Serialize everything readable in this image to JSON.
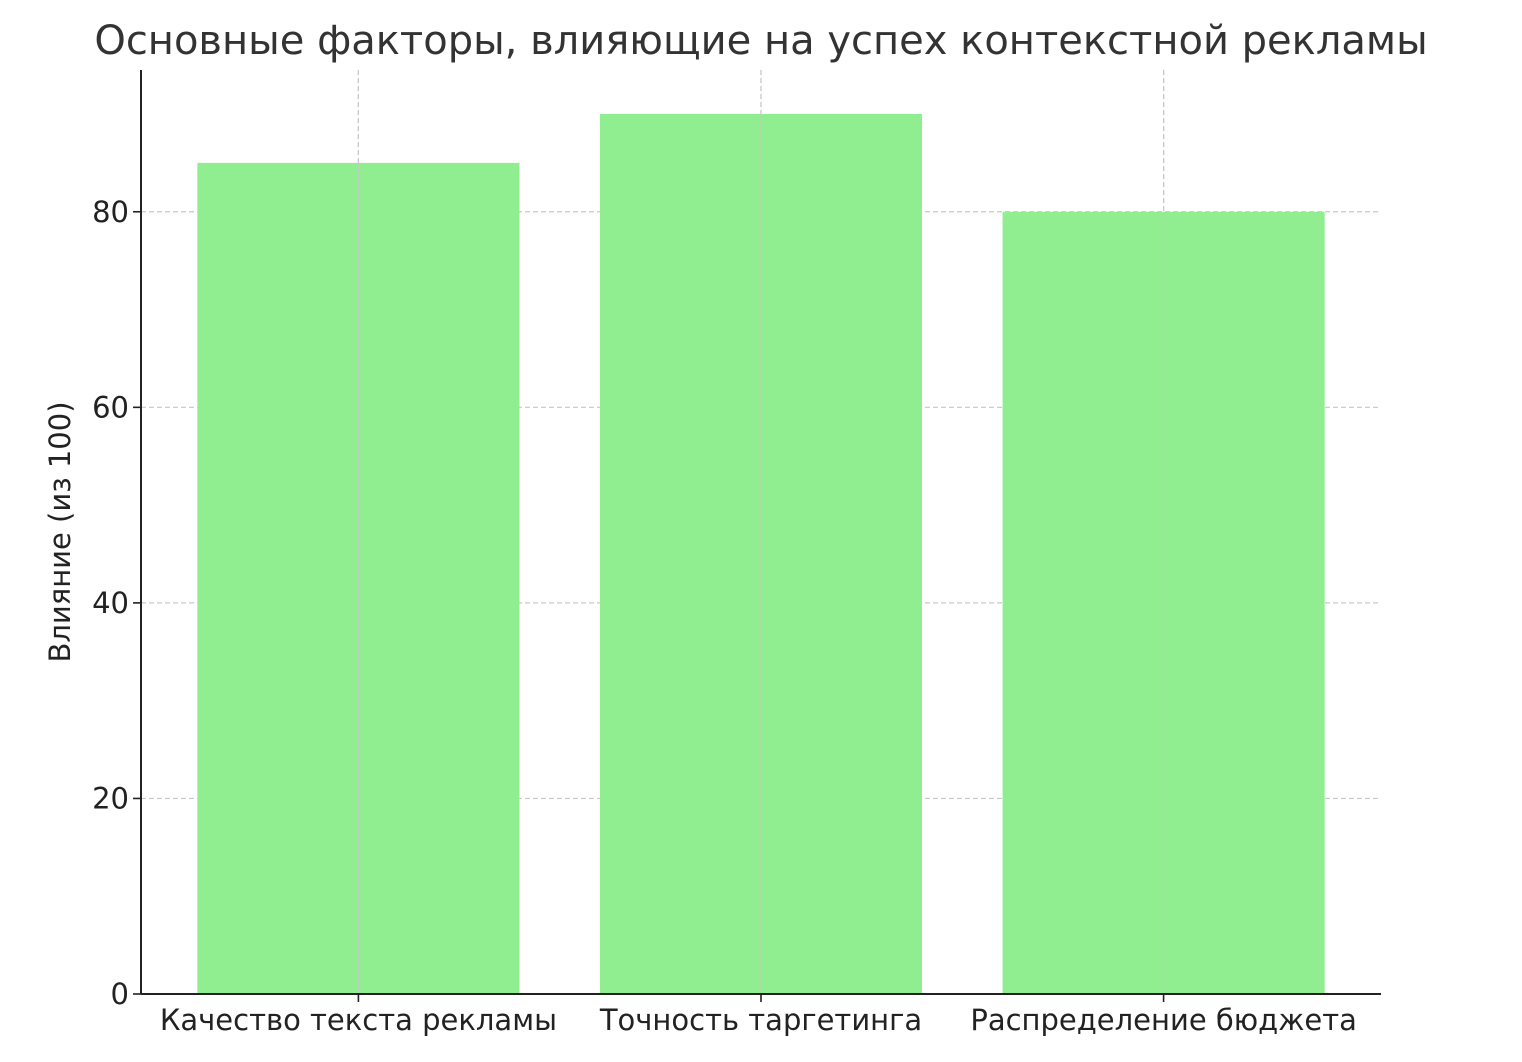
{
  "chart_data": {
    "type": "bar",
    "title": "Основные факторы, влияющие на успех контекстной рекламы",
    "xlabel": "",
    "ylabel": "Влияние (из 100)",
    "categories": [
      "Качество текста рекламы",
      "Точность таргетинга",
      "Распределение бюджета"
    ],
    "values": [
      85,
      90,
      80
    ],
    "ylim": [
      0,
      94.5
    ],
    "yticks": [
      0,
      20,
      40,
      60,
      80
    ],
    "grid": true,
    "bar_color": "#90EE90",
    "legend": "none"
  }
}
